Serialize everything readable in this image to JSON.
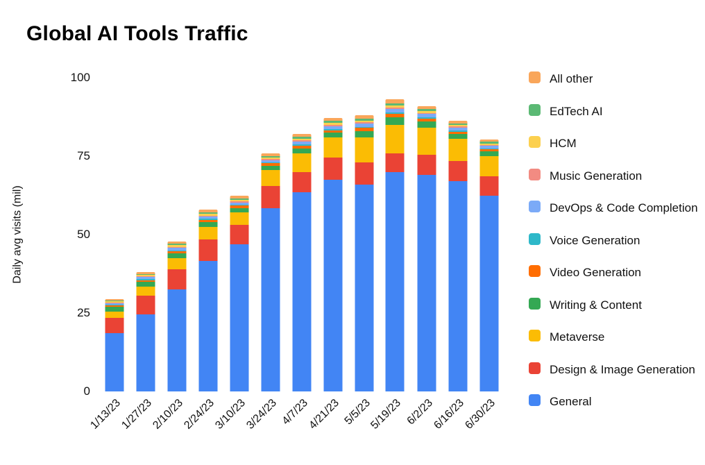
{
  "chart_data": {
    "type": "bar",
    "stacked": true,
    "title": "Global AI Tools Traffic",
    "xlabel": "",
    "ylabel": "Daily avg visits (mil)",
    "ylim": [
      0,
      100
    ],
    "yticks": [
      0,
      25,
      50,
      75,
      100
    ],
    "grid": false,
    "legend_position": "right",
    "legend_order": "reverse-of-stack",
    "categories": [
      "1/13/23",
      "1/27/23",
      "2/10/23",
      "2/24/23",
      "3/10/23",
      "3/24/23",
      "4/7/23",
      "4/21/23",
      "5/5/23",
      "5/19/23",
      "6/2/23",
      "6/16/23",
      "6/30/23"
    ],
    "series": [
      {
        "name": "General",
        "color": "#4285F4",
        "values": [
          18.5,
          24.5,
          32.5,
          41.5,
          47,
          58.5,
          63.5,
          67.5,
          66,
          70,
          69,
          67,
          62.5
        ]
      },
      {
        "name": "Design & Image Generation",
        "color": "#EA4335",
        "values": [
          5,
          6,
          6.5,
          7,
          6,
          7,
          6.5,
          7,
          7,
          6,
          6.5,
          6.5,
          6
        ]
      },
      {
        "name": "Metaverse",
        "color": "#FBBC04",
        "values": [
          2,
          3,
          3.5,
          4,
          4,
          5,
          6,
          6.5,
          8,
          9,
          8.5,
          7,
          6.5
        ]
      },
      {
        "name": "Writing & Content",
        "color": "#34A853",
        "values": [
          1.5,
          1.5,
          1.5,
          1.5,
          1.5,
          1.5,
          1.5,
          1.5,
          2,
          2.5,
          2,
          1.5,
          1.5
        ]
      },
      {
        "name": "Video Generation",
        "color": "#FF6D01",
        "values": [
          0.5,
          0.5,
          0.7,
          0.7,
          0.7,
          0.7,
          0.8,
          0.8,
          1,
          1,
          1,
          0.8,
          0.7
        ]
      },
      {
        "name": "Voice Generation",
        "color": "#2EB8C9",
        "values": [
          0.2,
          0.3,
          0.3,
          0.3,
          0.3,
          0.3,
          0.4,
          0.4,
          0.4,
          0.5,
          0.4,
          0.4,
          0.3
        ]
      },
      {
        "name": "DevOps & Code Completion",
        "color": "#7BAAF7",
        "values": [
          0.5,
          0.7,
          0.8,
          0.8,
          0.8,
          0.8,
          0.9,
          0.9,
          1,
          1,
          1,
          0.9,
          0.8
        ]
      },
      {
        "name": "Music Generation",
        "color": "#F28B82",
        "values": [
          0.2,
          0.2,
          0.3,
          0.3,
          0.3,
          0.3,
          0.4,
          0.4,
          0.4,
          0.5,
          0.4,
          0.4,
          0.3
        ]
      },
      {
        "name": "HCM",
        "color": "#FCD04F",
        "values": [
          0.3,
          0.4,
          0.5,
          0.5,
          0.5,
          0.5,
          0.6,
          0.6,
          0.6,
          0.7,
          0.6,
          0.5,
          0.5
        ]
      },
      {
        "name": "EdTech AI",
        "color": "#5BB974",
        "values": [
          0.3,
          0.4,
          0.5,
          0.5,
          0.5,
          0.5,
          0.6,
          0.6,
          0.6,
          0.7,
          0.6,
          0.5,
          0.5
        ]
      },
      {
        "name": "All other",
        "color": "#F9A65A",
        "values": [
          0.5,
          0.6,
          0.7,
          0.8,
          0.8,
          0.9,
          1,
          1,
          1,
          1.2,
          1,
          0.9,
          0.8
        ]
      }
    ]
  }
}
